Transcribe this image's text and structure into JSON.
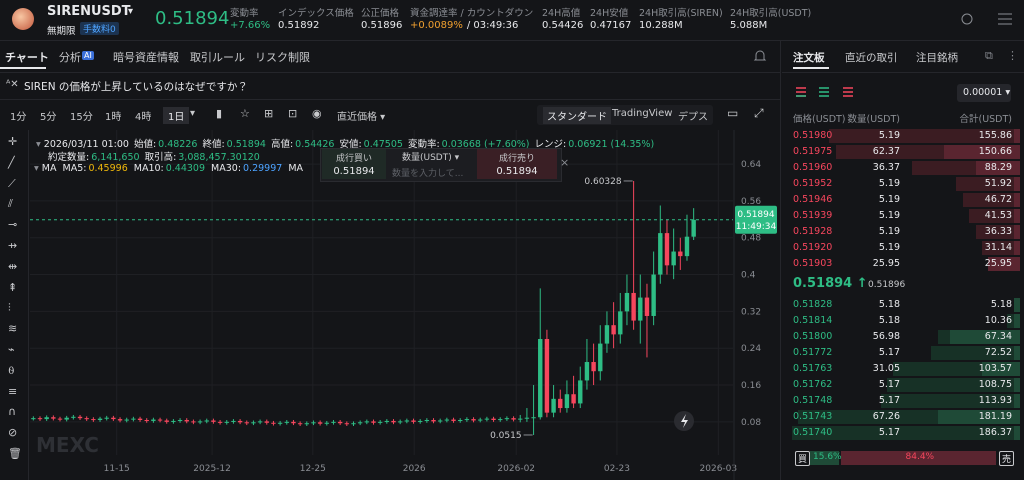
{
  "header": {
    "symbol": "SIRENUSDT",
    "contract": "無期限",
    "fee_tag": "手数料0",
    "last_price": "0.51894",
    "stats": [
      {
        "label": "変動率",
        "value": "+7.66%",
        "color": "#2ebd85"
      },
      {
        "label": "インデックス価格",
        "value": "0.51892"
      },
      {
        "label": "公正価格",
        "value": "0.51896"
      },
      {
        "label": "資金調達率 / カウントダウン",
        "value": "+0.0089%",
        "color": "#f0a030",
        "extra": "/ 03:49:36"
      },
      {
        "label": "24H高値",
        "value": "0.54426"
      },
      {
        "label": "24H安値",
        "value": "0.47167"
      },
      {
        "label": "24H取引高(SIREN)",
        "value": "10.288M"
      },
      {
        "label": "24H取引高(USDT)",
        "value": "5.088M"
      }
    ]
  },
  "tabs": [
    "チャート",
    "分析",
    "暗号資産情報",
    "取引ルール",
    "リスク制限"
  ],
  "ai_badge": "AI",
  "question": "SIREN の価格が上昇しているのはなぜですか？",
  "intervals": [
    "1分",
    "5分",
    "15分",
    "1時",
    "4時",
    "1日"
  ],
  "price_type": "直近価格",
  "views": [
    "スタンダード",
    "TradingView",
    "デプス"
  ],
  "ohlc_info": {
    "time": "2026/03/11 01:00",
    "items": [
      {
        "label": "始値:",
        "value": "0.48226"
      },
      {
        "label": "終値:",
        "value": "0.51894"
      },
      {
        "label": "高値:",
        "value": "0.54426"
      },
      {
        "label": "安値:",
        "value": "0.47505"
      },
      {
        "label": "変動率:",
        "value": "0.03668 (+7.60%)"
      },
      {
        "label": "レンジ:",
        "value": "0.06921 (14.35%)"
      }
    ],
    "volume_items": [
      {
        "label": "約定数量:",
        "value": "6,141,650"
      },
      {
        "label": "取引高:",
        "value": "3,088,457.30120"
      }
    ],
    "ma_title": "MA",
    "ma": [
      {
        "label": "MA5:",
        "value": "0.45996",
        "color": "#f0b90b"
      },
      {
        "label": "MA10:",
        "value": "0.44309",
        "color": "#2ebd85"
      },
      {
        "label": "MA30:",
        "value": "0.29997",
        "color": "#4da3ff"
      }
    ],
    "ma_more": "MA"
  },
  "quick_order": {
    "buy": "成行買い",
    "buy_price": "0.51894",
    "qty": "数量(USDT)",
    "qty_placeholder": "数量を入力して...",
    "sell": "成行売り",
    "sell_price": "0.51894"
  },
  "chart_data": {
    "type": "candlestick",
    "up_color": "#2ebd85",
    "down_color": "#f6465d",
    "grid": true,
    "ohlc": [
      [
        0.087,
        0.092,
        0.083,
        0.088
      ],
      [
        0.088,
        0.092,
        0.082,
        0.086
      ],
      [
        0.086,
        0.094,
        0.082,
        0.09
      ],
      [
        0.09,
        0.094,
        0.083,
        0.087
      ],
      [
        0.087,
        0.091,
        0.081,
        0.085
      ],
      [
        0.085,
        0.093,
        0.081,
        0.089
      ],
      [
        0.089,
        0.095,
        0.085,
        0.091
      ],
      [
        0.091,
        0.095,
        0.084,
        0.088
      ],
      [
        0.088,
        0.092,
        0.082,
        0.086
      ],
      [
        0.086,
        0.09,
        0.08,
        0.084
      ],
      [
        0.084,
        0.091,
        0.08,
        0.087
      ],
      [
        0.087,
        0.093,
        0.083,
        0.089
      ],
      [
        0.089,
        0.093,
        0.082,
        0.086
      ],
      [
        0.086,
        0.09,
        0.079,
        0.083
      ],
      [
        0.083,
        0.089,
        0.079,
        0.085
      ],
      [
        0.085,
        0.091,
        0.081,
        0.087
      ],
      [
        0.087,
        0.091,
        0.08,
        0.084
      ],
      [
        0.084,
        0.088,
        0.078,
        0.082
      ],
      [
        0.082,
        0.089,
        0.078,
        0.085
      ],
      [
        0.085,
        0.089,
        0.079,
        0.083
      ],
      [
        0.083,
        0.087,
        0.076,
        0.08
      ],
      [
        0.08,
        0.086,
        0.076,
        0.082
      ],
      [
        0.082,
        0.088,
        0.078,
        0.084
      ],
      [
        0.084,
        0.088,
        0.077,
        0.081
      ],
      [
        0.081,
        0.085,
        0.075,
        0.079
      ],
      [
        0.079,
        0.085,
        0.075,
        0.081
      ],
      [
        0.081,
        0.087,
        0.077,
        0.083
      ],
      [
        0.083,
        0.087,
        0.076,
        0.08
      ],
      [
        0.08,
        0.084,
        0.074,
        0.078
      ],
      [
        0.078,
        0.084,
        0.074,
        0.08
      ],
      [
        0.08,
        0.086,
        0.076,
        0.082
      ],
      [
        0.082,
        0.086,
        0.075,
        0.079
      ],
      [
        0.079,
        0.083,
        0.073,
        0.077
      ],
      [
        0.077,
        0.083,
        0.073,
        0.079
      ],
      [
        0.079,
        0.085,
        0.075,
        0.081
      ],
      [
        0.081,
        0.085,
        0.074,
        0.078
      ],
      [
        0.078,
        0.082,
        0.072,
        0.076
      ],
      [
        0.076,
        0.082,
        0.072,
        0.078
      ],
      [
        0.078,
        0.084,
        0.074,
        0.08
      ],
      [
        0.08,
        0.084,
        0.073,
        0.077
      ],
      [
        0.077,
        0.081,
        0.071,
        0.075
      ],
      [
        0.075,
        0.081,
        0.071,
        0.077
      ],
      [
        0.077,
        0.083,
        0.073,
        0.079
      ],
      [
        0.079,
        0.083,
        0.072,
        0.076
      ],
      [
        0.076,
        0.082,
        0.072,
        0.078
      ],
      [
        0.078,
        0.084,
        0.074,
        0.08
      ],
      [
        0.08,
        0.084,
        0.073,
        0.077
      ],
      [
        0.077,
        0.081,
        0.071,
        0.075
      ],
      [
        0.075,
        0.081,
        0.071,
        0.077
      ],
      [
        0.077,
        0.083,
        0.073,
        0.079
      ],
      [
        0.079,
        0.085,
        0.075,
        0.081
      ],
      [
        0.081,
        0.085,
        0.074,
        0.078
      ],
      [
        0.078,
        0.084,
        0.074,
        0.08
      ],
      [
        0.08,
        0.086,
        0.076,
        0.082
      ],
      [
        0.082,
        0.086,
        0.075,
        0.079
      ],
      [
        0.079,
        0.085,
        0.075,
        0.081
      ],
      [
        0.081,
        0.087,
        0.077,
        0.083
      ],
      [
        0.083,
        0.087,
        0.076,
        0.08
      ],
      [
        0.08,
        0.086,
        0.076,
        0.082
      ],
      [
        0.082,
        0.088,
        0.078,
        0.084
      ],
      [
        0.084,
        0.088,
        0.077,
        0.081
      ],
      [
        0.081,
        0.087,
        0.077,
        0.083
      ],
      [
        0.083,
        0.089,
        0.079,
        0.085
      ],
      [
        0.085,
        0.089,
        0.078,
        0.082
      ],
      [
        0.082,
        0.088,
        0.078,
        0.084
      ],
      [
        0.084,
        0.09,
        0.08,
        0.086
      ],
      [
        0.086,
        0.09,
        0.079,
        0.083
      ],
      [
        0.083,
        0.089,
        0.079,
        0.085
      ],
      [
        0.085,
        0.091,
        0.081,
        0.087
      ],
      [
        0.087,
        0.091,
        0.08,
        0.084
      ],
      [
        0.084,
        0.09,
        0.08,
        0.086
      ],
      [
        0.086,
        0.092,
        0.082,
        0.088
      ],
      [
        0.088,
        0.092,
        0.081,
        0.085
      ],
      [
        0.085,
        0.095,
        0.079,
        0.087
      ],
      [
        0.087,
        0.11,
        0.08,
        0.089
      ],
      [
        0.089,
        0.16,
        0.0515,
        0.09
      ],
      [
        0.09,
        0.37,
        0.085,
        0.26
      ],
      [
        0.26,
        0.28,
        0.09,
        0.1
      ],
      [
        0.1,
        0.16,
        0.09,
        0.13
      ],
      [
        0.13,
        0.15,
        0.1,
        0.11
      ],
      [
        0.11,
        0.17,
        0.1,
        0.14
      ],
      [
        0.14,
        0.18,
        0.11,
        0.12
      ],
      [
        0.12,
        0.2,
        0.11,
        0.17
      ],
      [
        0.17,
        0.26,
        0.15,
        0.21
      ],
      [
        0.21,
        0.25,
        0.16,
        0.19
      ],
      [
        0.19,
        0.29,
        0.17,
        0.25
      ],
      [
        0.25,
        0.32,
        0.23,
        0.29
      ],
      [
        0.29,
        0.34,
        0.24,
        0.27
      ],
      [
        0.27,
        0.36,
        0.25,
        0.32
      ],
      [
        0.32,
        0.4,
        0.29,
        0.36
      ],
      [
        0.36,
        0.60328,
        0.28,
        0.3
      ],
      [
        0.3,
        0.4,
        0.25,
        0.35
      ],
      [
        0.35,
        0.38,
        0.22,
        0.31
      ],
      [
        0.31,
        0.45,
        0.29,
        0.4
      ],
      [
        0.4,
        0.55,
        0.38,
        0.49
      ],
      [
        0.49,
        0.52,
        0.4,
        0.42
      ],
      [
        0.42,
        0.5,
        0.39,
        0.45
      ],
      [
        0.45,
        0.48,
        0.41,
        0.44
      ],
      [
        0.44,
        0.53,
        0.43,
        0.48226
      ],
      [
        0.48226,
        0.54426,
        0.47505,
        0.51894
      ]
    ],
    "xlim": [
      0,
      105.4
    ],
    "xticks": [
      {
        "value": 13,
        "label": "11-15"
      },
      {
        "value": 27.3,
        "label": "2025-12"
      },
      {
        "value": 42.4,
        "label": "12-25"
      },
      {
        "value": 57.6,
        "label": "2026"
      },
      {
        "value": 72.9,
        "label": "2026-02"
      },
      {
        "value": 88,
        "label": "02-23"
      },
      {
        "value": 103.2,
        "label": "2026-03"
      }
    ],
    "ylim": [
      0.008,
      0.714
    ],
    "yticks": [
      0.08,
      0.16,
      0.24,
      0.32,
      0.4,
      0.48,
      0.56,
      0.64
    ],
    "last_price": {
      "value": 0.51894,
      "label": "0.51894"
    },
    "countdown": "11:49:34",
    "annotations": [
      {
        "value": 0.60328,
        "label": "0.60328",
        "candle": 90
      },
      {
        "value": 0.0515,
        "label": "0.0515",
        "candle": 75
      }
    ],
    "watermark": "MEXC"
  },
  "order_book": {
    "tabs": [
      "注文板",
      "直近の取引",
      "注目銘柄"
    ],
    "precision": "0.00001",
    "headers": [
      "価格(USDT)",
      "数量(USDT)",
      "合計(USDT)"
    ],
    "asks": [
      {
        "price": "0.51980",
        "qty": 5.19,
        "total": 155.86
      },
      {
        "price": "0.51975",
        "qty": 62.37,
        "total": 150.66
      },
      {
        "price": "0.51960",
        "qty": 36.37,
        "total": 88.29
      },
      {
        "price": "0.51952",
        "qty": 5.19,
        "total": 51.92
      },
      {
        "price": "0.51946",
        "qty": 5.19,
        "total": 46.72
      },
      {
        "price": "0.51939",
        "qty": 5.19,
        "total": 41.53
      },
      {
        "price": "0.51928",
        "qty": 5.19,
        "total": 36.33
      },
      {
        "price": "0.51920",
        "qty": 5.19,
        "total": 31.14
      },
      {
        "price": "0.51903",
        "qty": 25.95,
        "total": 25.95
      }
    ],
    "mid_price": "0.51894",
    "mid_arrow": "↑",
    "mark_price": "0.51896",
    "bids": [
      {
        "price": "0.51828",
        "qty": 5.18,
        "total": 5.18
      },
      {
        "price": "0.51814",
        "qty": 5.18,
        "total": 10.36
      },
      {
        "price": "0.51800",
        "qty": 56.98,
        "total": 67.34
      },
      {
        "price": "0.51772",
        "qty": 5.17,
        "total": 72.52
      },
      {
        "price": "0.51763",
        "qty": 31.05,
        "total": 103.57
      },
      {
        "price": "0.51762",
        "qty": 5.17,
        "total": 108.75
      },
      {
        "price": "0.51748",
        "qty": 5.17,
        "total": 113.93
      },
      {
        "price": "0.51743",
        "qty": 67.26,
        "total": 181.19
      },
      {
        "price": "0.51740",
        "qty": 5.17,
        "total": 186.37
      }
    ],
    "buy_label": "買",
    "sell_label": "売",
    "buy_ratio": {
      "value": 15.6,
      "label": "15.6%"
    },
    "sell_ratio": {
      "value": 84.4,
      "label": "84.4%"
    }
  }
}
